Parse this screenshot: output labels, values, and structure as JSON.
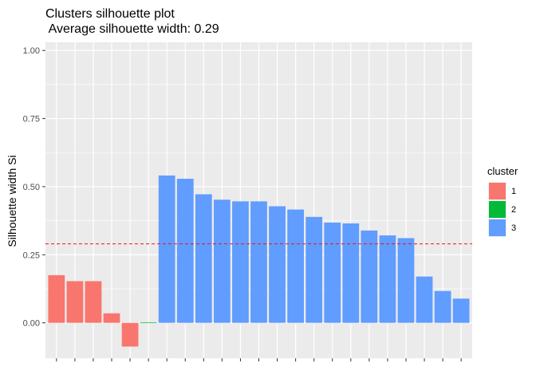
{
  "chart_data": {
    "type": "bar",
    "title": "Clusters silhouette plot",
    "subtitle": " Average silhouette width: 0.29",
    "xlabel": "",
    "ylabel": "Silhouette width Si",
    "ylim": [
      -0.13,
      1.03
    ],
    "yticks": [
      "0.00",
      "0.25",
      "0.50",
      "0.75",
      "1.00"
    ],
    "grid": true,
    "legend_position": "right",
    "legend_title": "cluster",
    "average_line": {
      "value": 0.29,
      "color": "#e41a1c",
      "style": "dashed"
    },
    "cluster_colors": {
      "1": "#F8766D",
      "2": "#00BA38",
      "3": "#619CFF"
    },
    "legend_entries": [
      {
        "label": "1",
        "color": "#F8766D"
      },
      {
        "label": "2",
        "color": "#00BA38"
      },
      {
        "label": "3",
        "color": "#619CFF"
      }
    ],
    "bars": [
      {
        "cluster": "1",
        "value": 0.175
      },
      {
        "cluster": "1",
        "value": 0.153
      },
      {
        "cluster": "1",
        "value": 0.153
      },
      {
        "cluster": "1",
        "value": 0.035
      },
      {
        "cluster": "1",
        "value": -0.087
      },
      {
        "cluster": "2",
        "value": 0.002
      },
      {
        "cluster": "3",
        "value": 0.541
      },
      {
        "cluster": "3",
        "value": 0.529
      },
      {
        "cluster": "3",
        "value": 0.472
      },
      {
        "cluster": "3",
        "value": 0.452
      },
      {
        "cluster": "3",
        "value": 0.446
      },
      {
        "cluster": "3",
        "value": 0.446
      },
      {
        "cluster": "3",
        "value": 0.428
      },
      {
        "cluster": "3",
        "value": 0.416
      },
      {
        "cluster": "3",
        "value": 0.389
      },
      {
        "cluster": "3",
        "value": 0.368
      },
      {
        "cluster": "3",
        "value": 0.365
      },
      {
        "cluster": "3",
        "value": 0.339
      },
      {
        "cluster": "3",
        "value": 0.321
      },
      {
        "cluster": "3",
        "value": 0.311
      },
      {
        "cluster": "3",
        "value": 0.17
      },
      {
        "cluster": "3",
        "value": 0.117
      },
      {
        "cluster": "3",
        "value": 0.089
      }
    ]
  }
}
